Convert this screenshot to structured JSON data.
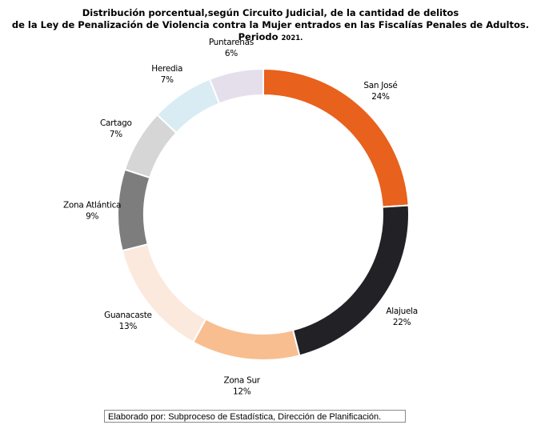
{
  "chart_data": {
    "type": "pie",
    "donut": true,
    "title_line1": "Distribución porcentual,según Circuito Judicial, de la cantidad de delitos",
    "title_line2": "de la Ley de Penalización de Violencia contra la Mujer entrados en las Fiscalías Penales de Adultos.",
    "title_line3_prefix": "Periodo",
    "title_line3_year": "2021.",
    "slices": [
      {
        "name": "San José",
        "value": 24,
        "label": "24%",
        "color": "#e8611d"
      },
      {
        "name": "Alajuela",
        "value": 22,
        "label": "22%",
        "color": "#222126"
      },
      {
        "name": "Zona Sur",
        "value": 12,
        "label": "12%",
        "color": "#f8be8f"
      },
      {
        "name": "Guanacaste",
        "value": 13,
        "label": "13%",
        "color": "#fbe9dd"
      },
      {
        "name": "Zona Atlántica",
        "value": 9,
        "label": "9%",
        "color": "#7d7d7d"
      },
      {
        "name": "Cartago",
        "value": 7,
        "label": "7%",
        "color": "#d6d6d6"
      },
      {
        "name": "Heredia",
        "value": 7,
        "label": "7%",
        "color": "#d9ecf4"
      },
      {
        "name": "Puntarenas",
        "value": 6,
        "label": "6%",
        "color": "#e5dfec"
      }
    ]
  },
  "footer": {
    "source": "Elaborado por: Subproceso de Estadística, Dirección de Planificación."
  }
}
